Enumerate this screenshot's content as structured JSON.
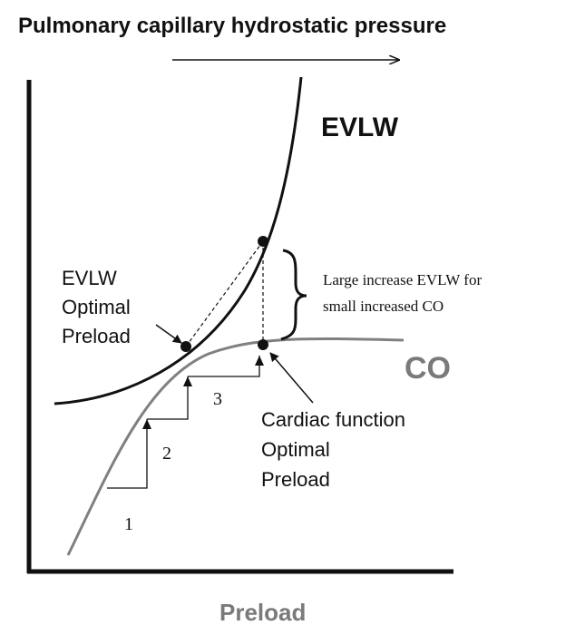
{
  "top_title": "Pulmonary capillary hydrostatic pressure",
  "x_axis_label": "Preload",
  "curve_labels": {
    "evlw": "EVLW",
    "co": "CO"
  },
  "left_annotation": {
    "line1": "EVLW",
    "line2": "Optimal",
    "line3": "Preload"
  },
  "right_annotation": {
    "line1": "Cardiac function",
    "line2": "Optimal",
    "line3": "Preload"
  },
  "brace_annotation": {
    "line1": "Large increase EVLW for",
    "line2": "small increased CO"
  },
  "step_labels": [
    "1",
    "2",
    "3"
  ],
  "colors": {
    "evlw_curve": "#111111",
    "co_curve": "#808080",
    "co_label": "#7a7a7a",
    "x_axis_label": "#7a7a7a",
    "text": "#111111"
  }
}
